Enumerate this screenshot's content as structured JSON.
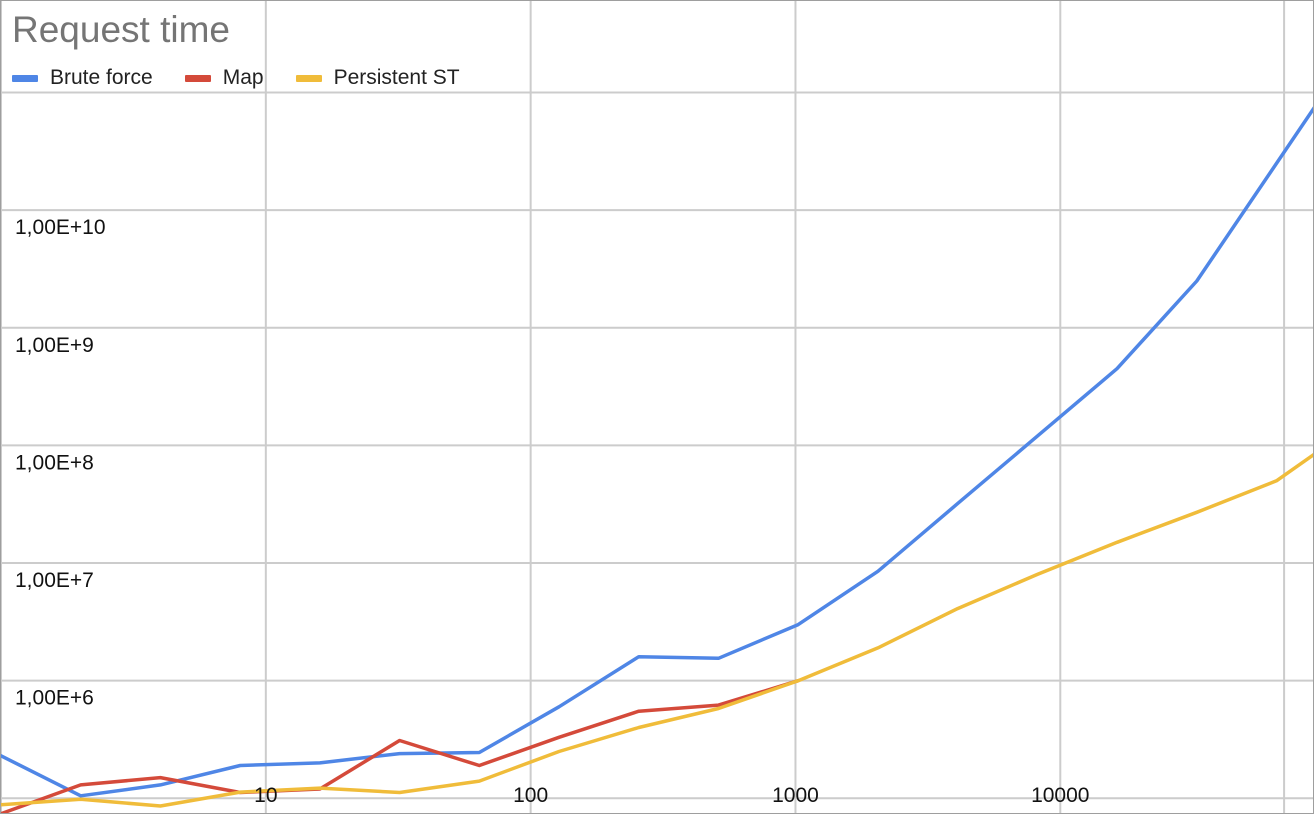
{
  "chart_data": {
    "type": "line",
    "title": "Request time",
    "x_scale": "log",
    "y_scale": "log",
    "xlim": [
      1,
      90000
    ],
    "ylim": [
      75000,
      600000000000
    ],
    "x_ticks": [
      10,
      100,
      1000,
      10000
    ],
    "x_tick_labels": [
      "10",
      "100",
      "1000",
      "10000"
    ],
    "y_ticks": [
      1000000,
      10000000,
      100000000,
      1000000000,
      10000000000
    ],
    "y_tick_labels": [
      "1,00E+6",
      "1,00E+7",
      "1,00E+8",
      "1,00E+9",
      "1,00E+10"
    ],
    "grid": true,
    "legend_position": "top-left",
    "series": [
      {
        "name": "Brute force",
        "color": "#4f86e6",
        "points": [
          [
            1,
            230000
          ],
          [
            2,
            105000
          ],
          [
            4,
            130000
          ],
          [
            8,
            190000
          ],
          [
            16,
            200000
          ],
          [
            32,
            240000
          ],
          [
            64,
            245000
          ],
          [
            128,
            600000
          ],
          [
            256,
            1600000
          ],
          [
            512,
            1550000
          ],
          [
            1024,
            3000000
          ],
          [
            2048,
            8500000
          ],
          [
            4096,
            32000000
          ],
          [
            8192,
            120000000
          ],
          [
            16384,
            450000000
          ],
          [
            32768,
            2500000000
          ],
          [
            65536,
            25000000000
          ],
          [
            131072,
            250000000000
          ]
        ]
      },
      {
        "name": "Map",
        "color": "#d44a3a",
        "points": [
          [
            1,
            74000
          ],
          [
            2,
            130000
          ],
          [
            4,
            150000
          ],
          [
            8,
            112000
          ],
          [
            16,
            120000
          ],
          [
            32,
            310000
          ],
          [
            64,
            190000
          ],
          [
            128,
            330000
          ],
          [
            256,
            550000
          ],
          [
            512,
            620000
          ],
          [
            1024,
            1000000
          ]
        ]
      },
      {
        "name": "Persistent ST",
        "color": "#f0bc3a",
        "points": [
          [
            1,
            88000
          ],
          [
            2,
            98000
          ],
          [
            4,
            86000
          ],
          [
            8,
            113000
          ],
          [
            16,
            122000
          ],
          [
            32,
            112000
          ],
          [
            64,
            140000
          ],
          [
            128,
            250000
          ],
          [
            256,
            400000
          ],
          [
            512,
            580000
          ],
          [
            1024,
            1000000
          ],
          [
            2048,
            1900000
          ],
          [
            4096,
            4100000
          ],
          [
            8192,
            8000000
          ],
          [
            16384,
            15000000
          ],
          [
            32768,
            27000000
          ],
          [
            65536,
            50000000
          ],
          [
            131072,
            150000000
          ]
        ]
      }
    ]
  }
}
